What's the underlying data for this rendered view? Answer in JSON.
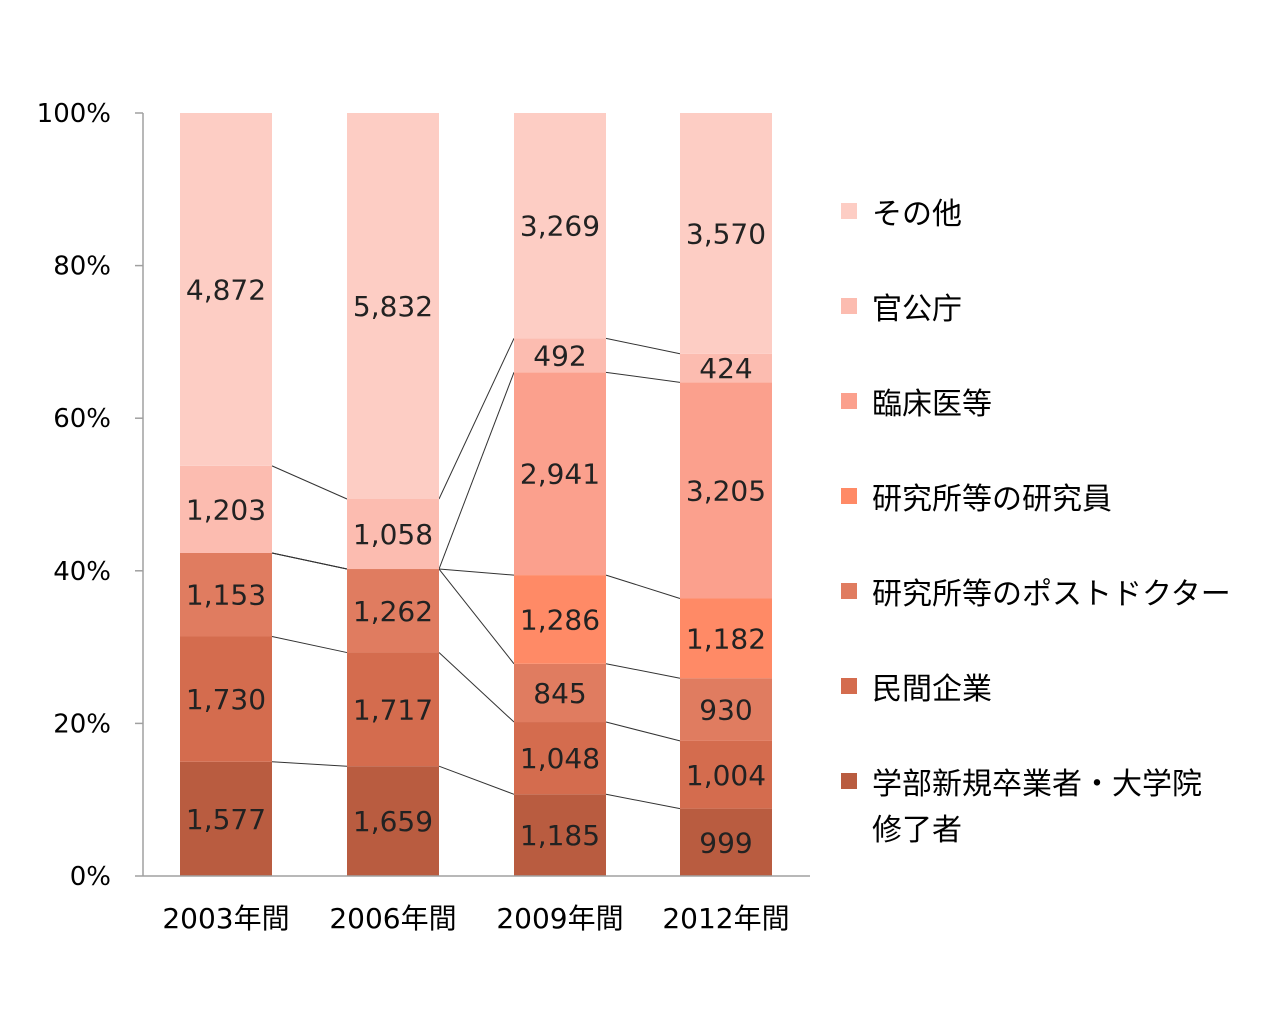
{
  "chart_data": {
    "type": "bar",
    "stacked": true,
    "normalized": true,
    "categories": [
      "2003年間",
      "2006年間",
      "2009年間",
      "2012年間"
    ],
    "yticks": [
      "0%",
      "20%",
      "40%",
      "60%",
      "80%",
      "100%"
    ],
    "ylim": [
      0,
      100
    ],
    "grid": false,
    "legend_position": "right",
    "series_lines": true,
    "series": [
      {
        "name": "学部新規卒業者・大学院修了者",
        "legend_lines": [
          "学部新規卒業者・大学院",
          "修了者"
        ],
        "color": "#b95c40",
        "values": [
          1577,
          1659,
          1185,
          999
        ]
      },
      {
        "name": "民間企業",
        "legend_lines": [
          "民間企業"
        ],
        "color": "#d46c4e",
        "values": [
          1730,
          1717,
          1048,
          1004
        ]
      },
      {
        "name": "研究所等のポストドクター",
        "legend_lines": [
          "研究所等のポストドクター"
        ],
        "color": "#e07c60",
        "values": [
          1153,
          1262,
          845,
          930
        ]
      },
      {
        "name": "研究所等の研究員",
        "legend_lines": [
          "研究所等の研究員"
        ],
        "color": "#ff8a66",
        "values": [
          0,
          0,
          1286,
          1182
        ]
      },
      {
        "name": "臨床医等",
        "legend_lines": [
          "臨床医等"
        ],
        "color": "#fba08d",
        "values": [
          0,
          0,
          2941,
          3205
        ]
      },
      {
        "name": "官公庁",
        "legend_lines": [
          "官公庁"
        ],
        "color": "#fcbcb0",
        "values": [
          1203,
          1058,
          492,
          424
        ]
      },
      {
        "name": "その他",
        "legend_lines": [
          "その他"
        ],
        "color": "#fdcdc4",
        "values": [
          4872,
          5832,
          3269,
          3570
        ]
      }
    ]
  }
}
